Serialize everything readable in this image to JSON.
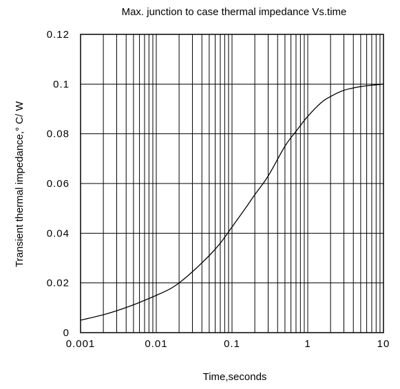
{
  "chart_data": {
    "type": "line",
    "title": "Max. junction to case thermal impedance Vs.time",
    "xlabel": "Time,seconds",
    "ylabel": "Transient thermal impedance,° C/ W",
    "x_scale": "log",
    "xlim": [
      0.001,
      10
    ],
    "ylim": [
      0,
      0.12
    ],
    "grid": true,
    "x_ticks": [
      0.001,
      0.01,
      0.1,
      1,
      10
    ],
    "x_tick_labels": [
      "0.001",
      "0.01",
      "0.1",
      "1",
      "10"
    ],
    "y_ticks": [
      0,
      0.02,
      0.04,
      0.06,
      0.08,
      0.1,
      0.12
    ],
    "y_tick_labels": [
      "0",
      "0.02",
      "0.04",
      "0.06",
      "0.08",
      "0.1",
      "0.12"
    ],
    "line_color": "#000000",
    "series": [
      {
        "x": [
          0.001,
          0.002,
          0.003,
          0.005,
          0.007,
          0.01,
          0.015,
          0.02,
          0.03,
          0.05,
          0.07,
          0.1,
          0.15,
          0.2,
          0.3,
          0.5,
          0.7,
          1,
          1.5,
          2,
          3,
          5,
          7,
          10
        ],
        "y": [
          0.005,
          0.0072,
          0.0088,
          0.0112,
          0.013,
          0.015,
          0.0175,
          0.02,
          0.0245,
          0.031,
          0.036,
          0.0425,
          0.05,
          0.0555,
          0.063,
          0.075,
          0.081,
          0.087,
          0.0925,
          0.095,
          0.0975,
          0.099,
          0.0995,
          0.1
        ]
      }
    ]
  }
}
